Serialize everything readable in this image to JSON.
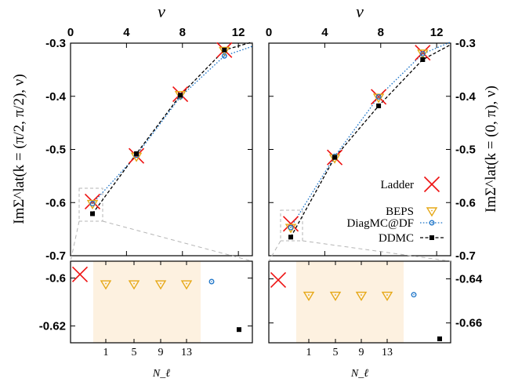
{
  "colors": {
    "ladder": "#ee1111",
    "beps": "#e6a817",
    "diagmc": "#1c74c8",
    "ddmc": "#000000",
    "shade": "#fdf1e0",
    "zoom": "#b5b5b5"
  },
  "legend": [
    "Ladder",
    "BEPS",
    "DiagMC@DF",
    "DDMC"
  ],
  "chart_data": [
    {
      "type": "line",
      "panel": "left-main",
      "x_top_label": "ν",
      "ylabel": "ImΣ^lat(k = (π/2, π/2), ν)",
      "xlim": [
        0,
        13
      ],
      "ylim": [
        -0.7,
        -0.3
      ],
      "x_ticks": [
        "0",
        "4",
        "8",
        "12"
      ],
      "y_ticks": [
        "-0.3",
        "-0.4",
        "-0.5",
        "-0.6",
        "-0.7"
      ],
      "grid": false,
      "legend": "none",
      "series": [
        {
          "name": "Ladder",
          "x": [
            1.57,
            4.71,
            7.85,
            11.0
          ],
          "y": [
            -0.598,
            -0.512,
            -0.396,
            -0.313
          ]
        },
        {
          "name": "BEPS",
          "x": [
            1.57,
            4.71,
            7.85,
            11.0
          ],
          "y": [
            -0.602,
            -0.513,
            -0.397,
            -0.314
          ]
        },
        {
          "name": "DiagMC@DF",
          "x": [
            1.57,
            4.71,
            7.85,
            11.0,
            13.0
          ],
          "y": [
            -0.602,
            -0.511,
            -0.401,
            -0.324,
            -0.306
          ]
        },
        {
          "name": "DDMC",
          "x": [
            1.57,
            4.71,
            7.85,
            11.0,
            13.0
          ],
          "y": [
            -0.621,
            -0.508,
            -0.398,
            -0.313,
            -0.298
          ]
        }
      ]
    },
    {
      "type": "line",
      "panel": "right-main",
      "x_top_label": "ν",
      "ylabel": "ImΣ^lat(k = (0, π), ν)",
      "xlim": [
        0,
        13
      ],
      "ylim": [
        -0.7,
        -0.3
      ],
      "x_ticks": [
        "0",
        "4",
        "8",
        "12"
      ],
      "y_ticks": [
        "-0.3",
        "-0.4",
        "-0.5",
        "-0.6",
        "-0.7"
      ],
      "grid": false,
      "legend": "bottom-right",
      "series": [
        {
          "name": "Ladder",
          "x": [
            1.57,
            4.71,
            7.85,
            11.0
          ],
          "y": [
            -0.64,
            -0.515,
            -0.401,
            -0.318
          ]
        },
        {
          "name": "BEPS",
          "x": [
            1.57,
            4.71,
            7.85,
            11.0
          ],
          "y": [
            -0.647,
            -0.516,
            -0.402,
            -0.319
          ]
        },
        {
          "name": "DiagMC@DF",
          "x": [
            1.57,
            4.71,
            7.85,
            11.0,
            13.0
          ],
          "y": [
            -0.647,
            -0.513,
            -0.401,
            -0.32,
            -0.298
          ]
        },
        {
          "name": "DDMC",
          "x": [
            1.57,
            4.71,
            7.85,
            11.0,
            13.0
          ],
          "y": [
            -0.665,
            -0.515,
            -0.418,
            -0.331,
            -0.303
          ]
        }
      ]
    },
    {
      "type": "scatter",
      "panel": "left-inset",
      "xlabel": "N_ℓ",
      "x_ticks": [
        "1",
        "5",
        "9",
        "13"
      ],
      "y_ticks": [
        "-0.6",
        "-0.62"
      ],
      "ylim": [
        -0.627,
        -0.593
      ],
      "ladder": -0.5985,
      "beps": [
        {
          "N": 1,
          "value": -0.6025
        },
        {
          "N": 5,
          "value": -0.6025
        },
        {
          "N": 9,
          "value": -0.6025
        },
        {
          "N": 13,
          "value": -0.6025
        }
      ],
      "diagmc": -0.6015,
      "ddmc": -0.6215
    },
    {
      "type": "scatter",
      "panel": "right-inset",
      "xlabel": "N_ℓ",
      "x_ticks": [
        "1",
        "5",
        "9",
        "13"
      ],
      "y_ticks": [
        "-0.64",
        "-0.66"
      ],
      "ylim": [
        -0.669,
        -0.632
      ],
      "ladder": -0.6405,
      "beps": [
        {
          "N": 1,
          "value": -0.6475
        },
        {
          "N": 5,
          "value": -0.6475
        },
        {
          "N": 9,
          "value": -0.6475
        },
        {
          "N": 13,
          "value": -0.6475
        }
      ],
      "diagmc": -0.6472,
      "ddmc": -0.6672
    }
  ]
}
